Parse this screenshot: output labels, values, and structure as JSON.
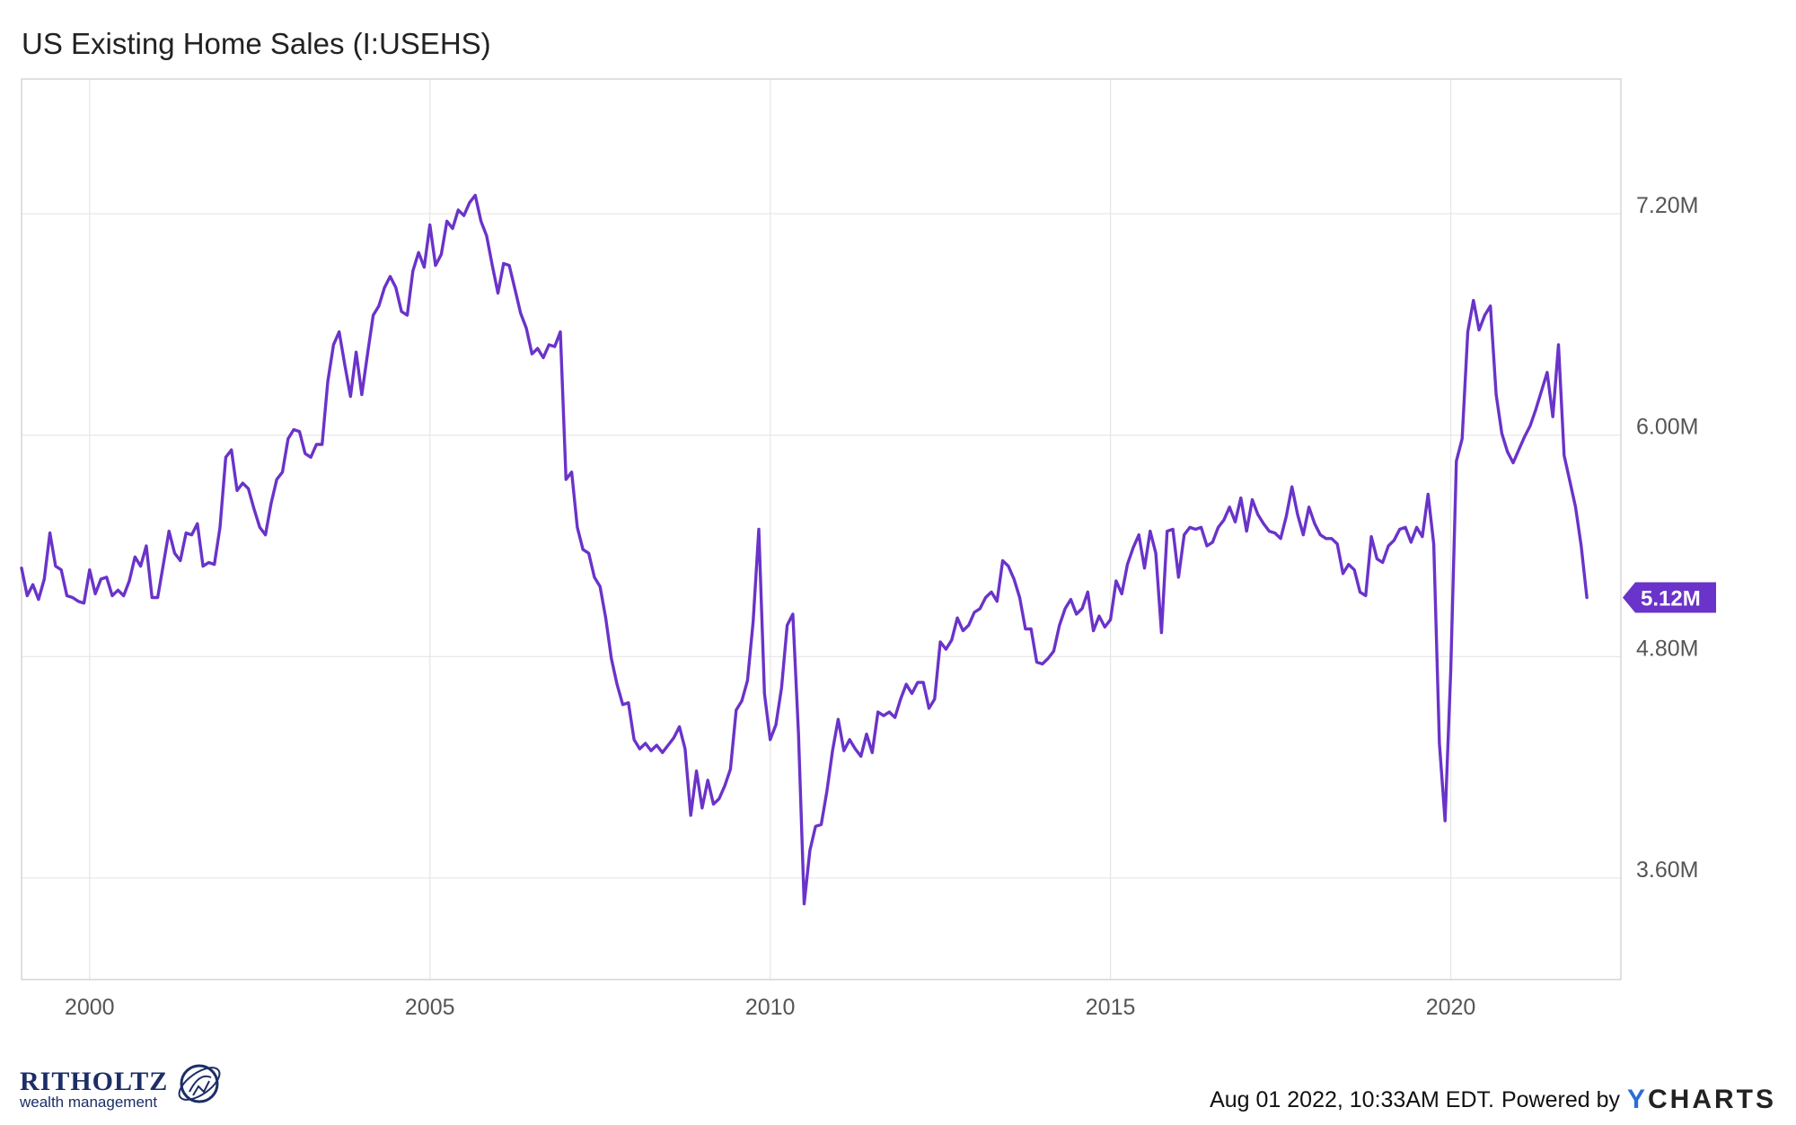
{
  "header": {
    "title": "US Existing Home Sales (I:USEHS)"
  },
  "footer": {
    "timestamp": "Aug 01 2022, 10:33AM EDT.",
    "powered_by": "Powered by",
    "brand_y": "Y",
    "brand_rest": "CHARTS"
  },
  "logo": {
    "name": "RITHOLTZ",
    "tagline": "wealth management",
    "emblem_icon": "globe-seal-icon"
  },
  "colors": {
    "line": "#6a33c9",
    "grid": "#e6e6e6",
    "border": "#cccccc",
    "label_bg": "#6a33c9"
  },
  "chart_data": {
    "type": "line",
    "title": "US Existing Home Sales (I:USEHS)",
    "xlabel": "",
    "ylabel": "",
    "x_start": 1999.0,
    "x_step": 0.083333,
    "xlim": [
      1999.0,
      2022.5
    ],
    "ylim": [
      3.05,
      7.93
    ],
    "x_ticks": [
      2000,
      2005,
      2010,
      2015,
      2020
    ],
    "y_ticks": [
      {
        "value": 3.6,
        "label": "3.60M"
      },
      {
        "value": 4.8,
        "label": "4.80M"
      },
      {
        "value": 6.0,
        "label": "6.00M"
      },
      {
        "value": 7.2,
        "label": "7.20M"
      }
    ],
    "last_value_label": "5.12M",
    "grid": true,
    "series": [
      {
        "values": [
          5.28,
          5.13,
          5.19,
          5.11,
          5.22,
          5.47,
          5.29,
          5.27,
          5.13,
          5.12,
          5.1,
          5.09,
          5.27,
          5.14,
          5.22,
          5.23,
          5.13,
          5.16,
          5.13,
          5.21,
          5.34,
          5.29,
          5.4,
          5.12,
          5.12,
          5.3,
          5.48,
          5.36,
          5.32,
          5.47,
          5.46,
          5.52,
          5.29,
          5.31,
          5.3,
          5.5,
          5.88,
          5.92,
          5.7,
          5.74,
          5.71,
          5.6,
          5.5,
          5.46,
          5.63,
          5.76,
          5.8,
          5.98,
          6.03,
          6.02,
          5.9,
          5.88,
          5.95,
          5.95,
          6.29,
          6.49,
          6.56,
          6.38,
          6.21,
          6.45,
          6.22,
          6.44,
          6.65,
          6.7,
          6.8,
          6.86,
          6.8,
          6.67,
          6.65,
          6.89,
          6.99,
          6.91,
          7.14,
          6.92,
          6.98,
          7.16,
          7.12,
          7.22,
          7.19,
          7.26,
          7.3,
          7.16,
          7.08,
          6.92,
          6.77,
          6.93,
          6.92,
          6.79,
          6.66,
          6.58,
          6.44,
          6.47,
          6.42,
          6.49,
          6.48,
          6.56,
          5.76,
          5.8,
          5.5,
          5.38,
          5.36,
          5.23,
          5.18,
          5.01,
          4.79,
          4.65,
          4.54,
          4.55,
          4.35,
          4.3,
          4.33,
          4.29,
          4.32,
          4.28,
          4.32,
          4.36,
          4.42,
          4.3,
          3.94,
          4.18,
          3.98,
          4.13,
          4.0,
          4.03,
          4.1,
          4.19,
          4.51,
          4.56,
          4.67,
          4.99,
          5.49,
          4.6,
          4.35,
          4.43,
          4.63,
          4.97,
          5.03,
          4.38,
          3.46,
          3.75,
          3.88,
          3.89,
          4.07,
          4.29,
          4.46,
          4.29,
          4.35,
          4.3,
          4.26,
          4.38,
          4.28,
          4.5,
          4.48,
          4.5,
          4.47,
          4.57,
          4.65,
          4.6,
          4.66,
          4.66,
          4.52,
          4.57,
          4.88,
          4.84,
          4.89,
          5.01,
          4.94,
          4.97,
          5.04,
          5.06,
          5.12,
          5.15,
          5.1,
          5.32,
          5.29,
          5.22,
          5.12,
          4.95,
          4.95,
          4.77,
          4.76,
          4.79,
          4.83,
          4.97,
          5.06,
          5.11,
          5.03,
          5.06,
          5.15,
          4.94,
          5.02,
          4.96,
          5.0,
          5.21,
          5.14,
          5.3,
          5.39,
          5.46,
          5.28,
          5.48,
          5.36,
          4.93,
          5.48,
          5.49,
          5.23,
          5.46,
          5.5,
          5.49,
          5.5,
          5.4,
          5.42,
          5.5,
          5.54,
          5.61,
          5.53,
          5.66,
          5.48,
          5.65,
          5.57,
          5.52,
          5.48,
          5.47,
          5.44,
          5.56,
          5.72,
          5.57,
          5.46,
          5.61,
          5.52,
          5.46,
          5.44,
          5.44,
          5.41,
          5.25,
          5.3,
          5.27,
          5.15,
          5.13,
          5.45,
          5.33,
          5.31,
          5.4,
          5.43,
          5.49,
          5.5,
          5.42,
          5.5,
          5.45,
          5.68,
          5.41,
          4.33,
          3.91,
          4.72,
          5.86,
          5.98,
          6.56,
          6.73,
          6.57,
          6.65,
          6.7,
          6.22,
          6.01,
          5.91,
          5.85,
          5.92,
          5.99,
          6.05,
          6.14,
          6.24,
          6.34,
          6.1,
          6.49,
          5.89,
          5.75,
          5.61,
          5.4,
          5.12
        ]
      }
    ]
  }
}
